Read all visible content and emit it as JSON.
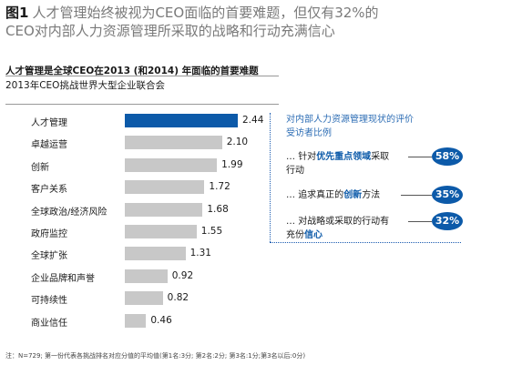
{
  "header": {
    "fig_label": "图1",
    "line1": "人才管理始终被视为CEO面临的首要难题，但仅有32%的",
    "line2": "CEO对内部人力资源管理所采取的战略和行动充满信心"
  },
  "chart_data": {
    "type": "bar",
    "orientation": "horizontal",
    "title": "人才管理是全球CEO在2013 (和2014) 年面临的首要难题",
    "subtitle": "2013年CEO挑战世界大型企业联合会",
    "categories": [
      "人才管理",
      "卓越运营",
      "创新",
      "客户关系",
      "全球政治/经济风险",
      "政府监控",
      "全球扩张",
      "企业品牌和声誉",
      "可持续性",
      "商业信任"
    ],
    "values": [
      2.44,
      2.1,
      1.99,
      1.72,
      1.68,
      1.55,
      1.31,
      0.92,
      0.82,
      0.46
    ],
    "value_labels": [
      "2.44",
      "2.10",
      "1.99",
      "1.72",
      "1.68",
      "1.55",
      "1.31",
      "0.92",
      "0.82",
      "0.46"
    ],
    "highlight_index": 0,
    "xlim": [
      0,
      2.44
    ],
    "grid": false,
    "colors": {
      "highlight": "#0c5aa9",
      "default": "#c8c8c8"
    }
  },
  "panel": {
    "title_line1": "对内部人力资源管理现状的评价",
    "title_line2": "受访者比例",
    "items": [
      {
        "pre": "针对",
        "hl": "优先重点领域",
        "post": "采取",
        "line2_pre": "行动",
        "line2_hl": "",
        "percent": "58%"
      },
      {
        "pre": "追求真正的",
        "hl": "创新",
        "post": "方法",
        "line2_pre": "",
        "line2_hl": "",
        "percent": "35%"
      },
      {
        "pre": "对战略或采取的行动有",
        "hl": "",
        "post": "",
        "line2_pre": "充份",
        "line2_hl": "信心",
        "percent": "32%"
      }
    ]
  },
  "footnote": "注：N=729; 第一份代表各挑战排名对应分值的平均值(第1名:3分; 第2名:2分; 第3名:1分;第3名以后:0分)"
}
